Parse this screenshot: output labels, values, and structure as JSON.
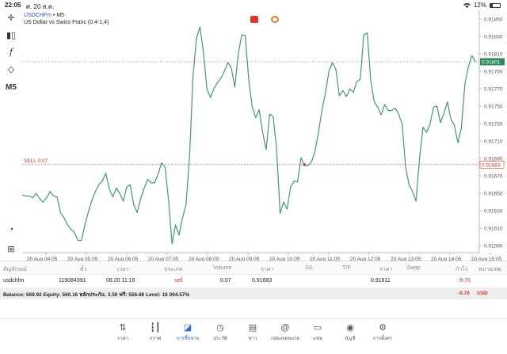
{
  "status": {
    "time": "22:05",
    "date": "ศ. 20 ส.ค.",
    "battery": "12%"
  },
  "toolbar": {
    "timeframe": "M5"
  },
  "chart_header": {
    "symbol": "USDCHFm",
    "timeframe": "M5",
    "sep": " • ",
    "description": "US Dollar vs Swiss Franc (0.4-1.4)"
  },
  "colors": {
    "line": "#3f9a72",
    "sell": "#e0352b",
    "price_label": "#2a8a5a",
    "accent": "#2a6fd6"
  },
  "chart_data": {
    "type": "line",
    "title": "USDCHFm",
    "x_labels": [
      "20 Aug 04:05",
      "20 Aug 05:05",
      "20 Aug 06:05",
      "20 Aug 07:05",
      "20 Aug 08:05",
      "20 Aug 09:05",
      "20 Aug 10:05",
      "20 Aug 11:05",
      "20 Aug 12:05",
      "20 Aug 13:05",
      "20 Aug 14:05",
      "20 Aug 15:05"
    ],
    "y_ticks": [
      "0.91850",
      "0.91830",
      "0.91810",
      "0.91790",
      "0.91770",
      "0.91750",
      "0.91730",
      "0.91710",
      "0.91690",
      "0.91670",
      "0.91650",
      "0.91630",
      "0.91610",
      "0.91590"
    ],
    "ylim": [
      0.91582,
      0.9186
    ],
    "current_price": "0.91801",
    "sell_label": "SELL 0.07",
    "sell_price": "0.91683",
    "sell_value": 0.91683,
    "current_value": 0.91801,
    "values": [
      0.91648,
      0.91647,
      0.91647,
      0.91645,
      0.9165,
      0.91644,
      0.9164,
      0.91645,
      0.91652,
      0.91647,
      0.91646,
      0.91628,
      0.91622,
      0.91614,
      0.91609,
      0.91605,
      0.91596,
      0.91596,
      0.91614,
      0.91629,
      0.91642,
      0.91652,
      0.9166,
      0.91664,
      0.91673,
      0.91655,
      0.91646,
      0.91656,
      0.9165,
      0.91641,
      0.91657,
      0.9166,
      0.91637,
      0.91628,
      0.91644,
      0.91656,
      0.91666,
      0.91662,
      0.91662,
      0.91672,
      0.91685,
      0.9168,
      0.91642,
      0.91592,
      0.91614,
      0.91602,
      0.91622,
      0.91637,
      0.9169,
      0.91784,
      0.91828,
      0.91841,
      0.91812,
      0.9177,
      0.9176,
      0.9177,
      0.91777,
      0.91782,
      0.9179,
      0.918,
      0.91794,
      0.91772,
      0.9181,
      0.91832,
      0.91831,
      0.9178,
      0.91749,
      0.91737,
      0.91746,
      0.9172,
      0.917,
      0.91741,
      0.91738,
      0.917,
      0.91627,
      0.9164,
      0.91632,
      0.91657,
      0.91664,
      0.91663,
      0.91691,
      0.91682,
      0.91682,
      0.91686,
      0.91698,
      0.9172,
      0.91745,
      0.91765,
      0.9179,
      0.918,
      0.91792,
      0.91762,
      0.91768,
      0.91761,
      0.9177,
      0.91766,
      0.91778,
      0.91781,
      0.91832,
      0.91834,
      0.91779,
      0.91755,
      0.91749,
      0.9174,
      0.91752,
      0.91745,
      0.91745,
      0.91748,
      0.91741,
      0.9173,
      0.9168,
      0.9166,
      0.91652,
      0.91641,
      0.9169,
      0.91726,
      0.9172,
      0.91729,
      0.91749,
      0.9175,
      0.91731,
      0.91742,
      0.91755,
      0.91735,
      0.91728,
      0.91708,
      0.91725,
      0.91775,
      0.91795,
      0.91808,
      0.91801
    ]
  },
  "trade_table": {
    "headers": [
      "สัญลักษณ์",
      "ตั๋ว",
      "เวลา",
      "ประเภท",
      "Volume",
      "ราคา",
      "S/L",
      "T/P",
      "ราคา",
      "Swap",
      "กำไร",
      "หมายเหตุ"
    ],
    "row": {
      "symbol": "usdchfm",
      "ticket": "119084391",
      "time": "08.20 11:16",
      "type": "sell",
      "volume": "0.07",
      "price": "0.91683",
      "sl": "",
      "tp": "",
      "current": "0.91811",
      "swap": "",
      "profit": "-9.76",
      "comment": ""
    }
  },
  "balance": {
    "text": "Balance: 569.92 Equity: 560.16 หลักประกัน: 3.50 ฟรี: 556.66 Level: 16 004.57%",
    "profit": "-9.76",
    "currency": "USD"
  },
  "nav": [
    {
      "label": "ราคา",
      "icon": "quotes-icon"
    },
    {
      "label": "กราฟ",
      "icon": "chart-icon"
    },
    {
      "label": "การซื้อขาย",
      "icon": "trade-icon"
    },
    {
      "label": "ประวัติ",
      "icon": "history-icon"
    },
    {
      "label": "ข่าว",
      "icon": "news-icon"
    },
    {
      "label": "กล่องจดหมาย",
      "icon": "mailbox-icon"
    },
    {
      "label": "แชท",
      "icon": "chat-icon"
    },
    {
      "label": "บัญชี",
      "icon": "account-icon"
    },
    {
      "label": "การตั้งค่า",
      "icon": "settings-icon"
    }
  ]
}
